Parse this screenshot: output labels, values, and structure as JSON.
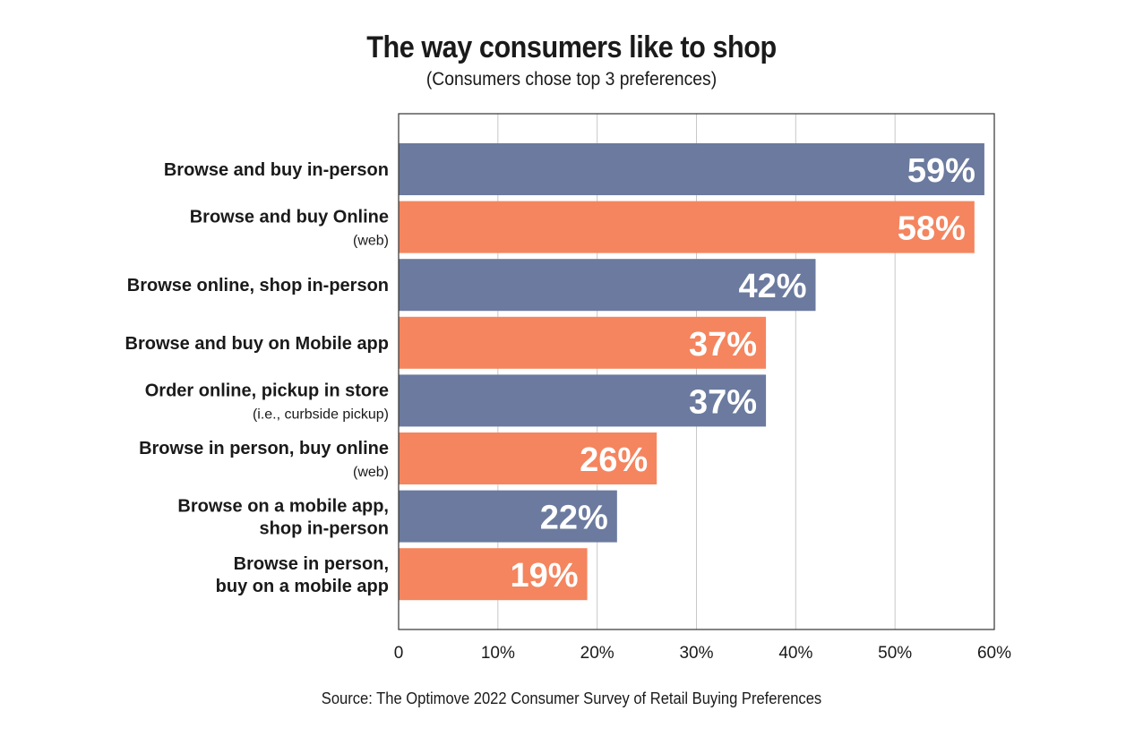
{
  "chart_data": {
    "type": "bar",
    "orientation": "horizontal",
    "title": "The way consumers like to shop",
    "subtitle": "(Consumers chose top 3 preferences)",
    "source": "Source: The Optimove 2022 Consumer Survey of Retail Buying Preferences",
    "xlim": [
      0,
      60
    ],
    "ticks": [
      0,
      10,
      20,
      30,
      40,
      50,
      60
    ],
    "tick_labels": [
      "0",
      "10%",
      "20%",
      "30%",
      "40%",
      "50%",
      "60%"
    ],
    "grid": true,
    "colors": [
      "#6b7a9e",
      "#f4855f"
    ],
    "categories": [
      {
        "lines": [
          "Browse and buy in-person"
        ],
        "note": ""
      },
      {
        "lines": [
          "Browse and buy Online"
        ],
        "note": "(web)"
      },
      {
        "lines": [
          "Browse online, shop in-person"
        ],
        "note": ""
      },
      {
        "lines": [
          "Browse and buy on Mobile app"
        ],
        "note": ""
      },
      {
        "lines": [
          "Order online, pickup in store"
        ],
        "note": "(i.e., curbside pickup)"
      },
      {
        "lines": [
          "Browse in person, buy online"
        ],
        "note": "(web)"
      },
      {
        "lines": [
          "Browse on a mobile app,",
          "shop in-person"
        ],
        "note": ""
      },
      {
        "lines": [
          "Browse in person,",
          "buy on a mobile app"
        ],
        "note": ""
      }
    ],
    "values": [
      59,
      58,
      42,
      37,
      37,
      26,
      22,
      19
    ],
    "value_labels": [
      "59%",
      "58%",
      "42%",
      "37%",
      "37%",
      "26%",
      "22%",
      "19%"
    ]
  }
}
